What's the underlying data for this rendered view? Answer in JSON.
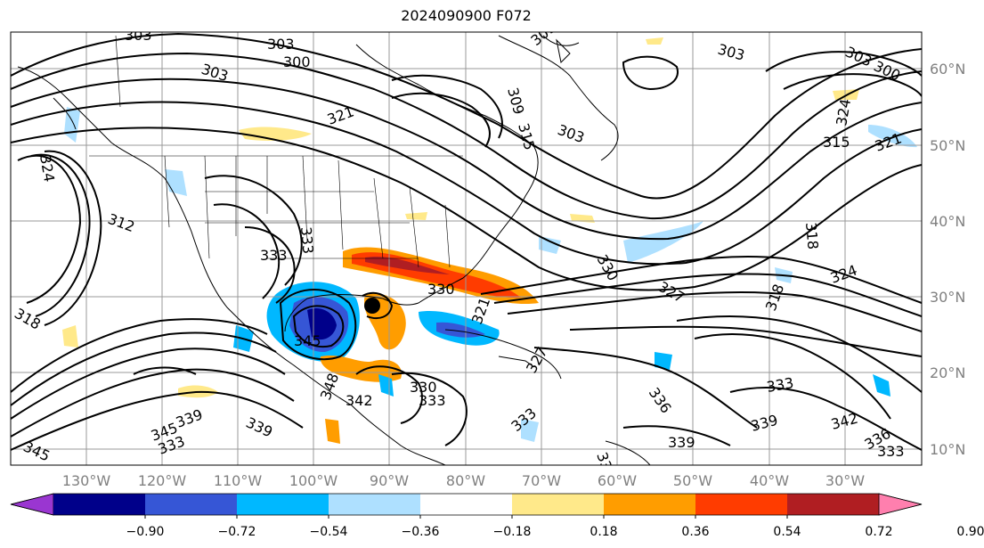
{
  "title": "2024090900 F072",
  "lon_labels": [
    "130°W",
    "120°W",
    "110°W",
    "100°W",
    "90°W",
    "80°W",
    "70°W",
    "60°W",
    "50°W",
    "40°W",
    "30°W"
  ],
  "lat_labels": [
    "60°N",
    "50°N",
    "40°N",
    "30°N",
    "20°N",
    "10°N"
  ],
  "contour_labels": [
    "303",
    "303",
    "300",
    "303",
    "303",
    "309",
    "309",
    "315",
    "303",
    "303",
    "300",
    "324",
    "315",
    "321",
    "321",
    "324",
    "318",
    "312",
    "333",
    "330",
    "327",
    "333",
    "330",
    "321",
    "327",
    "318",
    "324",
    "318",
    "345",
    "345",
    "348",
    "342",
    "330",
    "333",
    "333",
    "336",
    "339",
    "333",
    "339",
    "342",
    "336",
    "333",
    "339",
    "345",
    "339",
    "333",
    "336"
  ],
  "colorbar": {
    "tick_labels": [
      "−0.90",
      "−0.72",
      "−0.54",
      "−0.36",
      "−0.18",
      "0.18",
      "0.36",
      "0.54",
      "0.72",
      "0.90"
    ],
    "colors": [
      "#9a36d1",
      "#00008a",
      "#3656d6",
      "#00b8ff",
      "#aee0ff",
      "#ffffff",
      "#ffe98a",
      "#ff9d00",
      "#ff3c00",
      "#b01e22",
      "#ff7fae"
    ]
  }
}
